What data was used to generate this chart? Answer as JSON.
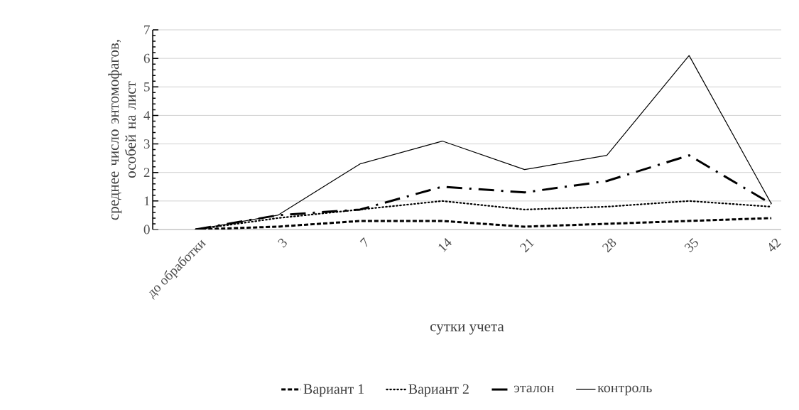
{
  "chart_data": {
    "type": "line",
    "xlabel": "сутки учета",
    "ylabel": "среднее число энтомофагов, особей на лист",
    "categories": [
      "до обработки",
      "3",
      "7",
      "14",
      "21",
      "28",
      "35",
      "42"
    ],
    "series": [
      {
        "name": "Вариант 1",
        "color": "#000000",
        "line_style": "dashed",
        "values": [
          0,
          0.1,
          0.3,
          0.3,
          0.1,
          0.2,
          0.3,
          0.4
        ]
      },
      {
        "name": "Вариант 2",
        "color": "#000000",
        "line_style": "dotted",
        "values": [
          0,
          0.4,
          0.7,
          1.0,
          0.7,
          0.8,
          1.0,
          0.8
        ]
      },
      {
        "name": "эталон",
        "color": "#000000",
        "line_style": "dashed",
        "values": [
          0,
          0.5,
          0.7,
          1.5,
          1.3,
          1.7,
          2.6,
          0.9
        ]
      },
      {
        "name": "контроль",
        "color": "#000000",
        "line_style": "solid",
        "values": [
          0,
          0.5,
          2.3,
          3.1,
          2.1,
          2.6,
          6.1,
          0.9
        ]
      }
    ],
    "ylim": [
      0,
      7
    ],
    "yticks": [
      0,
      1,
      2,
      3,
      4,
      5,
      6,
      7
    ],
    "grid": "y",
    "legend": "bottom",
    "marker": "none"
  }
}
